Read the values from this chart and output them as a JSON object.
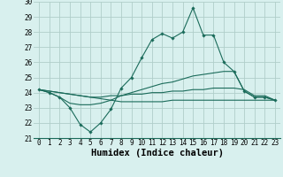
{
  "xlabel": "Humidex (Indice chaleur)",
  "x": [
    0,
    1,
    2,
    3,
    4,
    5,
    6,
    7,
    8,
    9,
    10,
    11,
    12,
    13,
    14,
    15,
    16,
    17,
    18,
    19,
    20,
    21,
    22,
    23
  ],
  "line1": [
    24.2,
    24.0,
    23.7,
    23.0,
    21.9,
    21.4,
    22.0,
    22.9,
    24.3,
    25.0,
    26.3,
    27.5,
    27.9,
    27.6,
    28.0,
    29.6,
    27.8,
    27.8,
    26.0,
    25.4,
    24.1,
    23.7,
    23.7,
    23.5
  ],
  "line2": [
    24.2,
    24.0,
    23.7,
    23.3,
    23.2,
    23.2,
    23.3,
    23.5,
    23.8,
    24.0,
    24.2,
    24.4,
    24.6,
    24.7,
    24.9,
    25.1,
    25.2,
    25.3,
    25.4,
    25.4,
    24.1,
    23.7,
    23.7,
    23.5
  ],
  "line3": [
    24.2,
    24.1,
    24.0,
    23.9,
    23.8,
    23.7,
    23.7,
    23.8,
    23.8,
    23.9,
    23.9,
    24.0,
    24.0,
    24.1,
    24.1,
    24.2,
    24.2,
    24.3,
    24.3,
    24.3,
    24.2,
    23.8,
    23.8,
    23.5
  ],
  "line4": [
    24.2,
    24.1,
    24.0,
    23.9,
    23.8,
    23.7,
    23.6,
    23.5,
    23.4,
    23.4,
    23.4,
    23.4,
    23.4,
    23.5,
    23.5,
    23.5,
    23.5,
    23.5,
    23.5,
    23.5,
    23.5,
    23.5,
    23.5,
    23.5
  ],
  "color": "#1a6b5a",
  "bg_color": "#d8f0ee",
  "grid_color": "#b0ceca",
  "ylim": [
    21,
    30
  ],
  "yticks": [
    21,
    22,
    23,
    24,
    25,
    26,
    27,
    28,
    29,
    30
  ],
  "xticks": [
    0,
    1,
    2,
    3,
    4,
    5,
    6,
    7,
    8,
    9,
    10,
    11,
    12,
    13,
    14,
    15,
    16,
    17,
    18,
    19,
    20,
    21,
    22,
    23
  ],
  "tick_fontsize": 5.5,
  "xlabel_fontsize": 7.5
}
